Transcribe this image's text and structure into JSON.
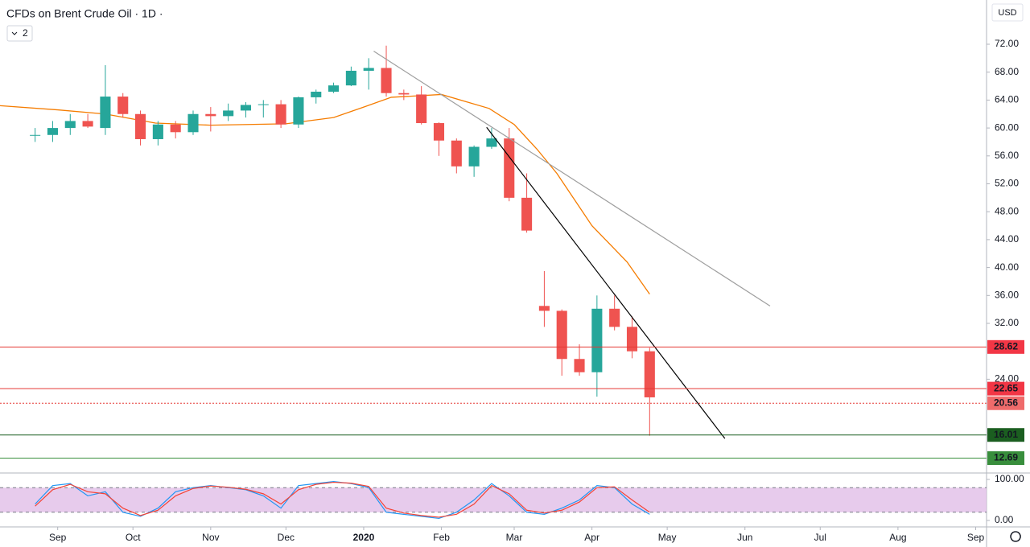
{
  "chart_data": [
    {
      "type": "candlestick",
      "title": "CFDs on Brent Crude Oil · 1D · ",
      "indicator_badge": "2",
      "currency": "USD",
      "up_color": "#26a69a",
      "down_color": "#ef5350",
      "x": [
        "2019-08-23",
        "2019-08-30",
        "2019-09-06",
        "2019-09-13",
        "2019-09-20",
        "2019-09-27",
        "2019-10-04",
        "2019-10-11",
        "2019-10-18",
        "2019-10-25",
        "2019-11-01",
        "2019-11-08",
        "2019-11-15",
        "2019-11-22",
        "2019-11-29",
        "2019-12-06",
        "2019-12-13",
        "2019-12-20",
        "2019-12-27",
        "2020-01-03",
        "2020-01-10",
        "2020-01-17",
        "2020-01-24",
        "2020-01-31",
        "2020-02-07",
        "2020-02-14",
        "2020-02-21",
        "2020-02-28",
        "2020-03-06",
        "2020-03-13",
        "2020-03-20",
        "2020-03-27",
        "2020-04-03",
        "2020-04-10",
        "2020-04-17",
        "2020-04-24"
      ],
      "open": [
        59,
        59,
        60,
        61,
        60,
        64.5,
        62,
        58.4,
        60.5,
        59.4,
        62,
        61.7,
        62.5,
        63.3,
        63.4,
        60.5,
        64.4,
        65.2,
        66.1,
        68.2,
        68.6,
        65,
        64.8,
        60.7,
        58.2,
        54.5,
        57.3,
        58.5,
        50,
        34.5,
        33.8,
        26.9,
        25,
        34.1,
        31.5,
        28
      ],
      "high": [
        60,
        61,
        62,
        62,
        69,
        65,
        62.5,
        61,
        61,
        62.5,
        63,
        63.5,
        63.7,
        64,
        64,
        64.5,
        65.5,
        66.5,
        68.8,
        70,
        71.8,
        65.5,
        66,
        60.8,
        58.5,
        57.5,
        60,
        60,
        53.5,
        39.5,
        34,
        29,
        36,
        36,
        33,
        28.5
      ],
      "low": [
        58,
        58,
        59,
        60,
        59,
        61.5,
        57.5,
        57.5,
        58.5,
        59,
        59.5,
        61,
        61.5,
        61.5,
        60,
        60,
        63.5,
        65,
        66,
        65.5,
        64.5,
        64,
        60.5,
        56,
        53.5,
        53,
        57,
        49.5,
        45,
        31.5,
        24.5,
        24.5,
        21.5,
        31,
        27,
        15.9
      ],
      "close": [
        59,
        60,
        61,
        60.2,
        64.5,
        62,
        58.4,
        60.5,
        59.4,
        62,
        61.7,
        62.5,
        63.3,
        63.4,
        60.5,
        64.4,
        65.2,
        66.1,
        68.2,
        68.6,
        65,
        64.8,
        60.7,
        58.2,
        54.5,
        57.3,
        58.5,
        50,
        45.3,
        33.8,
        26.9,
        25,
        34.1,
        31.5,
        28,
        21.4
      ],
      "moving_average": {
        "color": "#f57c00",
        "x": [
          "2019-08-09",
          "2019-09-01",
          "2019-09-20",
          "2019-10-10",
          "2019-11-01",
          "2019-12-01",
          "2019-12-20",
          "2020-01-01",
          "2020-01-12",
          "2020-02-01",
          "2020-02-20",
          "2020-03-01",
          "2020-03-10",
          "2020-03-18",
          "2020-04-01",
          "2020-04-15",
          "2020-04-24"
        ],
        "values": [
          63.2,
          62.6,
          62.0,
          60.7,
          60.4,
          60.6,
          61.5,
          63.0,
          64.4,
          64.8,
          62.8,
          60.5,
          57.0,
          53.5,
          46.0,
          40.8,
          36.2
        ]
      },
      "trendlines": [
        {
          "color": "#9e9e9e",
          "x": [
            "2020-01-05",
            "2020-06-11"
          ],
          "values": [
            71,
            34.5
          ]
        },
        {
          "color": "#000000",
          "x": [
            "2020-02-19",
            "2020-05-24"
          ],
          "values": [
            60.1,
            15.5
          ]
        }
      ],
      "levels": [
        {
          "value": 28.62,
          "color": "#e53935",
          "label_color": "#f23645",
          "style": "solid"
        },
        {
          "value": 22.65,
          "color": "#e53935",
          "label_color": "#f23645",
          "style": "solid"
        },
        {
          "value": 20.56,
          "color": "#e53935",
          "label_color": "#ef6b6b",
          "style": "dotted"
        },
        {
          "value": 16.01,
          "color": "#1b5e20",
          "label_color": "#1b5e20",
          "style": "solid"
        },
        {
          "value": 12.69,
          "color": "#388e3c",
          "label_color": "#388e3c",
          "style": "solid"
        }
      ],
      "xlim": [
        "2019-08-09",
        "2020-09-05"
      ],
      "xticks": [
        {
          "value": "2019-09-01",
          "label": "Sep"
        },
        {
          "value": "2019-10-01",
          "label": "Oct"
        },
        {
          "value": "2019-11-01",
          "label": "Nov"
        },
        {
          "value": "2019-12-01",
          "label": "Dec"
        },
        {
          "value": "2020-01-01",
          "label": "2020"
        },
        {
          "value": "2020-02-01",
          "label": "Feb"
        },
        {
          "value": "2020-03-01",
          "label": "Mar"
        },
        {
          "value": "2020-04-01",
          "label": "Apr"
        },
        {
          "value": "2020-05-01",
          "label": "May"
        },
        {
          "value": "2020-06-01",
          "label": "Jun"
        },
        {
          "value": "2020-07-01",
          "label": "Jul"
        },
        {
          "value": "2020-08-01",
          "label": "Aug"
        },
        {
          "value": "2020-09-01",
          "label": "Sep"
        }
      ],
      "ylim": [
        10.56,
        78.34
      ],
      "yticks": [
        {
          "value": 72,
          "label": "72.00"
        },
        {
          "value": 68,
          "label": "68.00"
        },
        {
          "value": 64,
          "label": "64.00"
        },
        {
          "value": 60,
          "label": "60.00"
        },
        {
          "value": 56,
          "label": "56.00"
        },
        {
          "value": 52,
          "label": "52.00"
        },
        {
          "value": 48,
          "label": "48.00"
        },
        {
          "value": 44,
          "label": "44.00"
        },
        {
          "value": 40,
          "label": "40.00"
        },
        {
          "value": 36,
          "label": "36.00"
        },
        {
          "value": 32,
          "label": "32.00"
        },
        {
          "value": 24,
          "label": "24.00"
        }
      ]
    },
    {
      "type": "line",
      "x": [
        "2019-08-23",
        "2019-08-30",
        "2019-09-06",
        "2019-09-13",
        "2019-09-20",
        "2019-09-27",
        "2019-10-04",
        "2019-10-11",
        "2019-10-18",
        "2019-10-25",
        "2019-11-01",
        "2019-11-08",
        "2019-11-15",
        "2019-11-22",
        "2019-11-29",
        "2019-12-06",
        "2019-12-13",
        "2019-12-20",
        "2019-12-27",
        "2020-01-03",
        "2020-01-10",
        "2020-01-17",
        "2020-01-24",
        "2020-01-31",
        "2020-02-07",
        "2020-02-14",
        "2020-02-21",
        "2020-02-28",
        "2020-03-06",
        "2020-03-13",
        "2020-03-20",
        "2020-03-27",
        "2020-04-03",
        "2020-04-10",
        "2020-04-17",
        "2020-04-24"
      ],
      "series": [
        {
          "color": "#2196f3",
          "values": [
            40,
            85,
            90,
            60,
            70,
            20,
            10,
            30,
            70,
            80,
            85,
            80,
            75,
            60,
            30,
            85,
            90,
            95,
            90,
            80,
            20,
            15,
            10,
            5,
            20,
            50,
            90,
            60,
            20,
            15,
            30,
            50,
            85,
            80,
            40,
            15
          ]
        },
        {
          "color": "#f44336",
          "values": [
            35,
            75,
            88,
            70,
            65,
            30,
            12,
            25,
            60,
            78,
            84,
            81,
            76,
            65,
            40,
            75,
            88,
            93,
            91,
            83,
            30,
            18,
            12,
            8,
            15,
            40,
            85,
            65,
            25,
            18,
            25,
            45,
            80,
            82,
            50,
            20
          ]
        }
      ],
      "band": [
        20,
        80
      ],
      "band_color": "#e1bee7",
      "xlim": [
        "2019-08-09",
        "2020-09-05"
      ],
      "ylim": [
        -15.7,
        111.8
      ],
      "yticks": [
        {
          "value": 100,
          "label": "100.00"
        },
        {
          "value": 0,
          "label": "0.00"
        }
      ]
    }
  ]
}
